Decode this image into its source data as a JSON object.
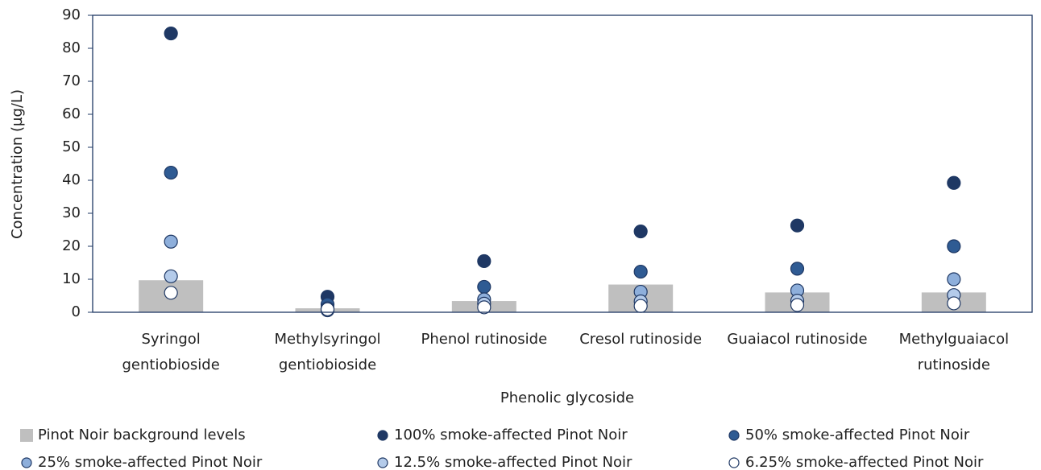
{
  "chart_data": {
    "type": "bar",
    "xlabel": "Phenolic glycoside",
    "ylabel": "Concentration (µg/L)",
    "categories": [
      "Syringol gentiobioside",
      "Methylsyringol gentiobioside",
      "Phenol rutinoside",
      "Cresol rutinoside",
      "Guaiacol rutinoside",
      "Methylguaiacol rutinoside"
    ],
    "series": [
      {
        "name": "Pinot Noir background levels",
        "type": "bar",
        "color": "#bfbfbf",
        "values": [
          9.7,
          1.2,
          3.4,
          8.4,
          6.0,
          6.0
        ]
      },
      {
        "name": "100% smoke-affected Pinot Noir",
        "type": "scatter",
        "color": "#1f3864",
        "values": [
          84.5,
          4.7,
          15.5,
          24.5,
          26.3,
          39.2
        ]
      },
      {
        "name": "50% smoke-affected Pinot Noir",
        "type": "scatter",
        "color": "#2f5b93",
        "values": [
          42.3,
          2.4,
          7.7,
          12.3,
          13.2,
          20.0
        ]
      },
      {
        "name": "25% smoke-affected Pinot Noir",
        "type": "scatter",
        "color": "#8eafdb",
        "values": [
          21.4,
          1.2,
          3.9,
          6.2,
          6.6,
          10.0
        ]
      },
      {
        "name": "12.5% smoke-affected Pinot Noir",
        "type": "scatter",
        "color": "#b4cbea",
        "values": [
          10.9,
          0.6,
          2.6,
          3.3,
          3.5,
          5.2
        ]
      },
      {
        "name": "6.25% smoke-affected Pinot Noir",
        "type": "scatter",
        "color": "#ffffff",
        "values": [
          5.9,
          0.9,
          1.5,
          1.9,
          2.2,
          2.7
        ]
      }
    ],
    "ylim": [
      0,
      90
    ],
    "yticks": [
      0,
      10,
      20,
      30,
      40,
      50,
      60,
      70,
      80,
      90
    ],
    "grid": false,
    "legend": "bottom"
  }
}
